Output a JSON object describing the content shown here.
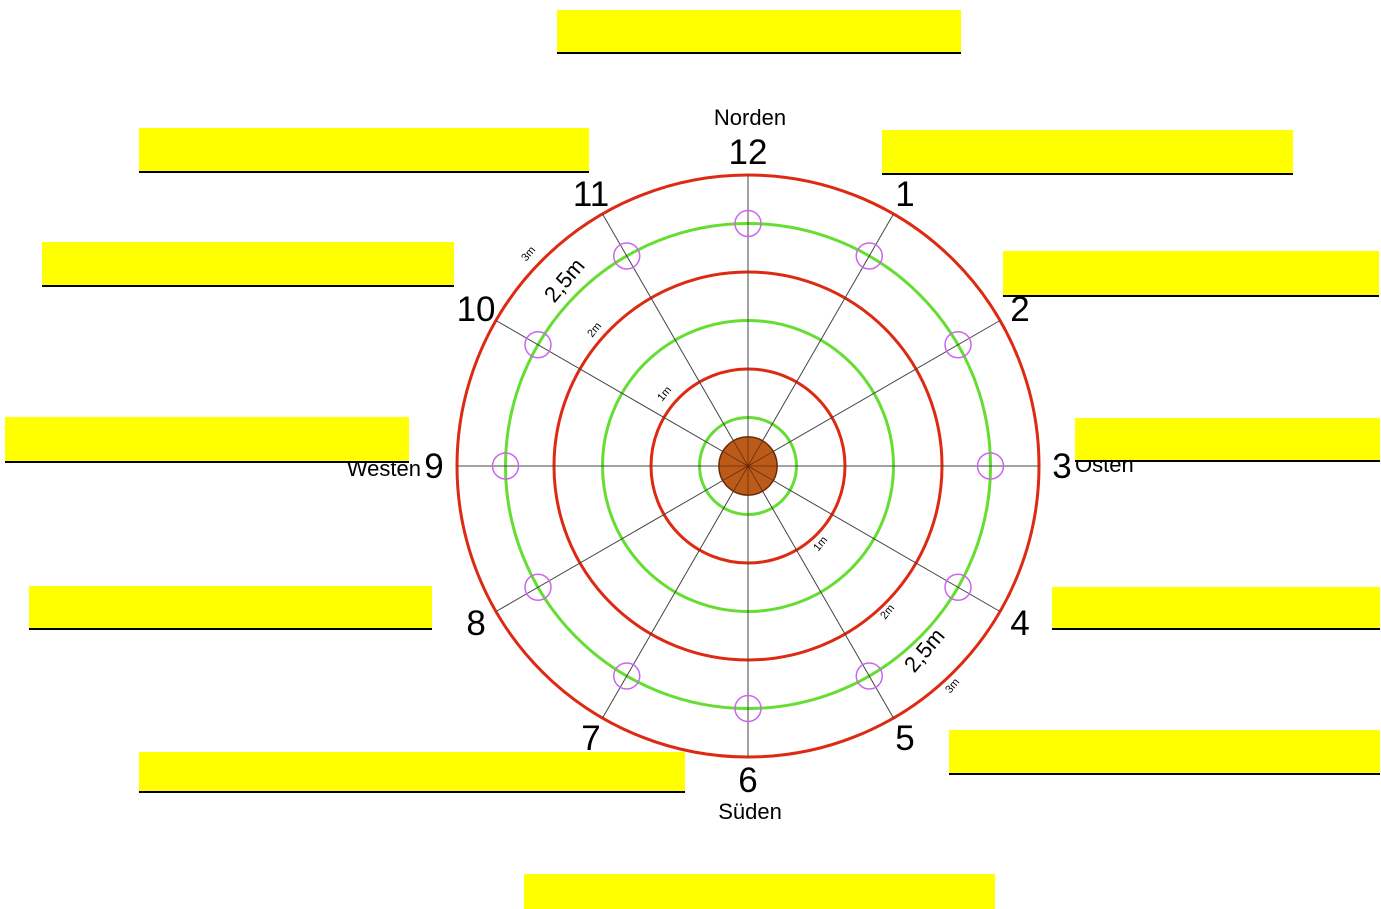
{
  "colors": {
    "background": "#ffffff",
    "highlight_box": "#ffff00",
    "box_underline": "#000000",
    "ring_red": "#dd2a12",
    "ring_green": "#66dd33",
    "spoke": "#444444",
    "marker": "#cc66ee",
    "center_disc": "#bb5b1a",
    "label": "#000000"
  },
  "directions": {
    "north": "Norden",
    "south": "Süden",
    "east": "Osten",
    "west": "Westen"
  },
  "clock_numbers": [
    "12",
    "1",
    "2",
    "3",
    "4",
    "5",
    "6",
    "7",
    "8",
    "9",
    "10",
    "11"
  ],
  "radius_labels": {
    "r1": "1m",
    "r2": "2m",
    "r25": "2,5m",
    "r3": "3m"
  },
  "rings": [
    {
      "meters": 0.5,
      "color": "green"
    },
    {
      "meters": 1,
      "color": "red"
    },
    {
      "meters": 1.5,
      "color": "green"
    },
    {
      "meters": 2,
      "color": "red"
    },
    {
      "meters": 2.5,
      "color": "green"
    },
    {
      "meters": 3,
      "color": "red"
    }
  ],
  "center_disc_meters": 0.3,
  "marker_ring_meters": 2.5,
  "answer_boxes": [
    {
      "name": "answer-box-top",
      "value": ""
    },
    {
      "name": "answer-box-upper-left",
      "value": ""
    },
    {
      "name": "answer-box-upper-right",
      "value": ""
    },
    {
      "name": "answer-box-left-2",
      "value": ""
    },
    {
      "name": "answer-box-right-2",
      "value": ""
    },
    {
      "name": "answer-box-west",
      "value": ""
    },
    {
      "name": "answer-box-east",
      "value": ""
    },
    {
      "name": "answer-box-lower-left",
      "value": ""
    },
    {
      "name": "answer-box-lower-right",
      "value": ""
    },
    {
      "name": "answer-box-bottom-left",
      "value": ""
    },
    {
      "name": "answer-box-bottom-right",
      "value": ""
    },
    {
      "name": "answer-box-bottom",
      "value": ""
    }
  ]
}
